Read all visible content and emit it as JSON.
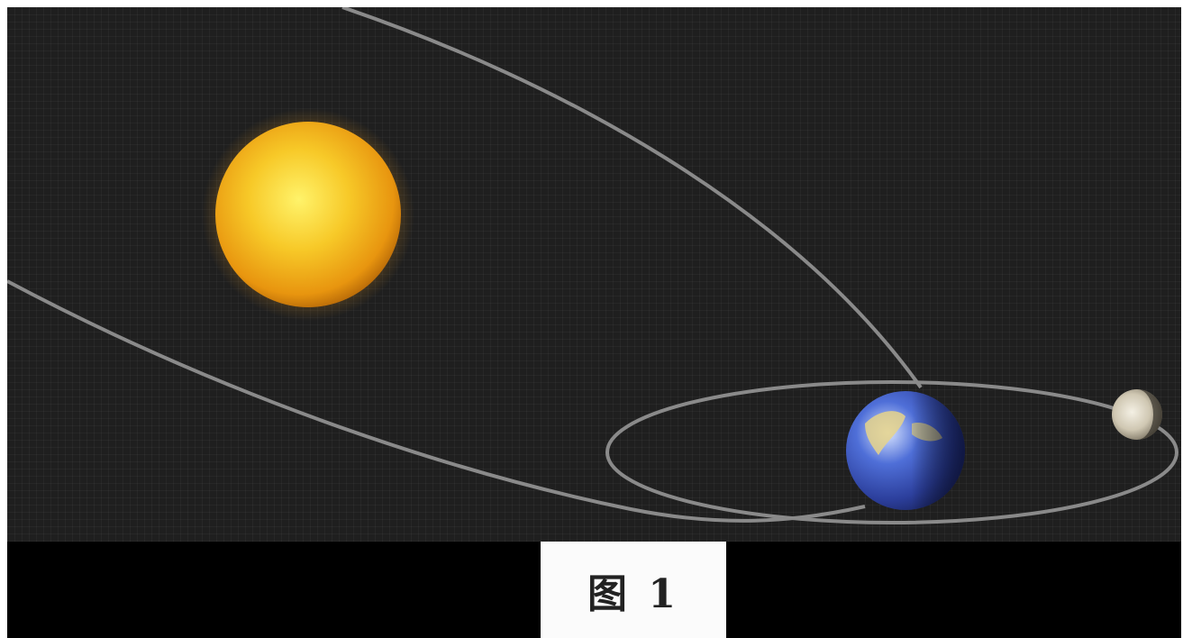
{
  "figure": {
    "caption": "图 1",
    "bodies": [
      {
        "name": "sun",
        "icon": "sun-icon",
        "color": "#f2b51c"
      },
      {
        "name": "earth",
        "icon": "earth-icon",
        "color": "#3a55b8"
      },
      {
        "name": "moon",
        "icon": "moon-icon",
        "color": "#d8d2c2"
      }
    ],
    "orbit_color": "#8a8a8a",
    "background_color": "#1f1f1f"
  }
}
